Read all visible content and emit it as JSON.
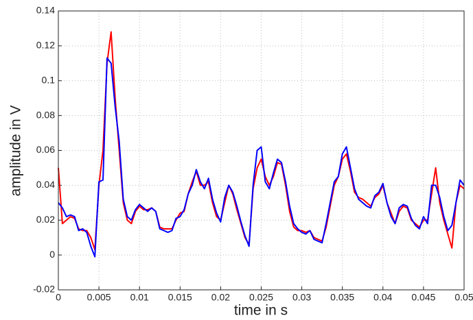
{
  "chart_data": {
    "type": "line",
    "x_label": "time in s",
    "y_label": "amplitude in V",
    "x": [
      0,
      0.0005,
      0.001,
      0.0015,
      0.002,
      0.0025,
      0.003,
      0.0035,
      0.004,
      0.0045,
      0.005,
      0.0055,
      0.006,
      0.0065,
      0.007,
      0.0075,
      0.008,
      0.0085,
      0.009,
      0.0095,
      0.01,
      0.0105,
      0.011,
      0.0115,
      0.012,
      0.0125,
      0.013,
      0.0135,
      0.014,
      0.0145,
      0.015,
      0.0155,
      0.016,
      0.0165,
      0.017,
      0.0175,
      0.018,
      0.0185,
      0.019,
      0.0195,
      0.02,
      0.0205,
      0.021,
      0.0215,
      0.022,
      0.0225,
      0.023,
      0.0235,
      0.024,
      0.0245,
      0.025,
      0.0255,
      0.026,
      0.0265,
      0.027,
      0.0275,
      0.028,
      0.0285,
      0.029,
      0.0295,
      0.03,
      0.0305,
      0.031,
      0.0315,
      0.032,
      0.0325,
      0.033,
      0.0335,
      0.034,
      0.0345,
      0.035,
      0.0355,
      0.036,
      0.0365,
      0.037,
      0.0375,
      0.038,
      0.0385,
      0.039,
      0.0395,
      0.04,
      0.0405,
      0.041,
      0.0415,
      0.042,
      0.0425,
      0.043,
      0.0435,
      0.044,
      0.0445,
      0.045,
      0.0455,
      0.046,
      0.0465,
      0.047,
      0.0475,
      0.048,
      0.0485,
      0.049,
      0.0495,
      0.05
    ],
    "series": [
      {
        "color": "#ff0000",
        "values": [
          0.05,
          0.018,
          0.02,
          0.022,
          0.021,
          0.015,
          0.014,
          0.014,
          0.01,
          0.003,
          0.04,
          0.06,
          0.11,
          0.128,
          0.09,
          0.06,
          0.03,
          0.02,
          0.018,
          0.025,
          0.028,
          0.026,
          0.026,
          0.027,
          0.025,
          0.016,
          0.015,
          0.015,
          0.015,
          0.02,
          0.024,
          0.025,
          0.035,
          0.042,
          0.048,
          0.04,
          0.04,
          0.042,
          0.03,
          0.022,
          0.02,
          0.03,
          0.04,
          0.035,
          0.026,
          0.018,
          0.01,
          0.006,
          0.038,
          0.05,
          0.055,
          0.045,
          0.04,
          0.045,
          0.053,
          0.052,
          0.04,
          0.025,
          0.016,
          0.014,
          0.014,
          0.013,
          0.014,
          0.01,
          0.009,
          0.008,
          0.016,
          0.028,
          0.04,
          0.045,
          0.055,
          0.058,
          0.048,
          0.036,
          0.033,
          0.032,
          0.03,
          0.028,
          0.033,
          0.035,
          0.04,
          0.03,
          0.024,
          0.018,
          0.025,
          0.028,
          0.027,
          0.02,
          0.018,
          0.016,
          0.02,
          0.02,
          0.035,
          0.05,
          0.03,
          0.02,
          0.012,
          0.004,
          0.03,
          0.04,
          0.038
        ]
      },
      {
        "color": "#0000ff",
        "values": [
          0.03,
          0.027,
          0.022,
          0.023,
          0.022,
          0.014,
          0.015,
          0.013,
          0.005,
          -0.001,
          0.042,
          0.043,
          0.113,
          0.11,
          0.085,
          0.065,
          0.032,
          0.022,
          0.02,
          0.026,
          0.029,
          0.027,
          0.025,
          0.027,
          0.025,
          0.015,
          0.014,
          0.013,
          0.014,
          0.021,
          0.022,
          0.026,
          0.035,
          0.04,
          0.049,
          0.042,
          0.038,
          0.044,
          0.032,
          0.024,
          0.019,
          0.033,
          0.04,
          0.036,
          0.028,
          0.019,
          0.011,
          0.005,
          0.04,
          0.06,
          0.062,
          0.042,
          0.038,
          0.047,
          0.055,
          0.053,
          0.042,
          0.028,
          0.018,
          0.015,
          0.013,
          0.012,
          0.014,
          0.009,
          0.008,
          0.007,
          0.018,
          0.03,
          0.042,
          0.045,
          0.058,
          0.062,
          0.05,
          0.038,
          0.032,
          0.03,
          0.028,
          0.027,
          0.034,
          0.036,
          0.041,
          0.03,
          0.022,
          0.018,
          0.027,
          0.029,
          0.028,
          0.021,
          0.017,
          0.015,
          0.022,
          0.018,
          0.04,
          0.04,
          0.033,
          0.022,
          0.014,
          0.017,
          0.03,
          0.043,
          0.04
        ]
      }
    ],
    "xlim": [
      0,
      0.05
    ],
    "xticks": [
      0,
      0.005,
      0.01,
      0.015,
      0.02,
      0.025,
      0.03,
      0.035,
      0.04,
      0.045,
      0.05
    ],
    "ylim": [
      -0.02,
      0.14
    ],
    "yticks": [
      -0.02,
      0,
      0.02,
      0.04,
      0.06,
      0.08,
      0.1,
      0.12,
      0.14
    ],
    "grid": true
  }
}
